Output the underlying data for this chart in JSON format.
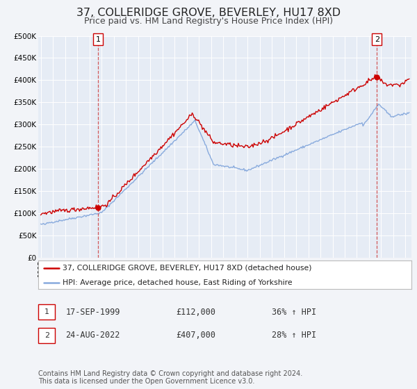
{
  "title": "37, COLLERIDGE GROVE, BEVERLEY, HU17 8XD",
  "subtitle": "Price paid vs. HM Land Registry's House Price Index (HPI)",
  "title_fontsize": 11.5,
  "subtitle_fontsize": 9,
  "background_color": "#f2f4f8",
  "plot_bg_color": "#e6ecf5",
  "grid_color": "#ffffff",
  "ylim": [
    0,
    500000
  ],
  "xlim_start": 1994.8,
  "xlim_end": 2025.5,
  "yticks": [
    0,
    50000,
    100000,
    150000,
    200000,
    250000,
    300000,
    350000,
    400000,
    450000,
    500000
  ],
  "ytick_labels": [
    "£0",
    "£50K",
    "£100K",
    "£150K",
    "£200K",
    "£250K",
    "£300K",
    "£350K",
    "£400K",
    "£450K",
    "£500K"
  ],
  "xticks": [
    1995,
    1996,
    1997,
    1998,
    1999,
    2000,
    2001,
    2002,
    2003,
    2004,
    2005,
    2006,
    2007,
    2008,
    2009,
    2010,
    2011,
    2012,
    2013,
    2014,
    2015,
    2016,
    2017,
    2018,
    2019,
    2020,
    2021,
    2022,
    2023,
    2024,
    2025
  ],
  "property_color": "#cc0000",
  "hpi_color": "#88aadd",
  "marker_color": "#cc0000",
  "sale1_x": 1999.72,
  "sale1_y": 112000,
  "sale1_label": "1",
  "sale2_x": 2022.65,
  "sale2_y": 407000,
  "sale2_label": "2",
  "vline1_x": 1999.72,
  "vline2_x": 2022.65,
  "legend_prop_label": "37, COLLERIDGE GROVE, BEVERLEY, HU17 8XD (detached house)",
  "legend_hpi_label": "HPI: Average price, detached house, East Riding of Yorkshire",
  "table_rows": [
    {
      "num": "1",
      "date": "17-SEP-1999",
      "price": "£112,000",
      "hpi": "36% ↑ HPI"
    },
    {
      "num": "2",
      "date": "24-AUG-2022",
      "price": "£407,000",
      "hpi": "28% ↑ HPI"
    }
  ],
  "footer": "Contains HM Land Registry data © Crown copyright and database right 2024.\nThis data is licensed under the Open Government Licence v3.0.",
  "footer_fontsize": 7.0
}
